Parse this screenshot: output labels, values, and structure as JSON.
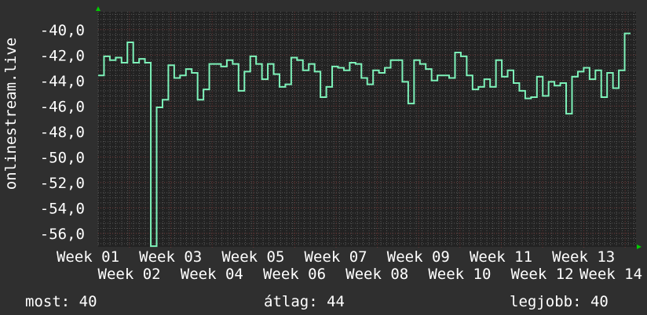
{
  "chart_data": {
    "type": "line",
    "step": true,
    "ylabel": "onlinestream.live",
    "xlabel": "",
    "ylim": [
      -57.05,
      -38.6
    ],
    "yticks": [
      -40,
      -42,
      -44,
      -46,
      -48,
      -50,
      -52,
      -54,
      -56
    ],
    "ytick_labels": [
      "-40,0",
      "-42,0",
      "-44,0",
      "-46,0",
      "-48,0",
      "-50,0",
      "-52,0",
      "-54,0",
      "-56,0"
    ],
    "xtick_labels": [
      "Week 01",
      "Week 02",
      "Week 03",
      "Week 04",
      "Week 05",
      "Week 06",
      "Week 07",
      "Week 08",
      "Week 09",
      "Week 10",
      "Week 11",
      "Week 12",
      "Week 13",
      "Week 14"
    ],
    "grid": true,
    "colors": {
      "line": "#7df2b9",
      "background": "#2f2f2f",
      "plot": "#222222",
      "grid_minor": "#555555",
      "grid_major": "#6b3535",
      "arrow": "#00cc00"
    },
    "values": [
      -43.6,
      -42.1,
      -42.4,
      -42.2,
      -42.6,
      -41.0,
      -42.6,
      -42.3,
      -42.6,
      -57.0,
      -46.1,
      -45.5,
      -42.8,
      -43.8,
      -43.6,
      -43.1,
      -43.4,
      -45.5,
      -44.7,
      -42.7,
      -42.7,
      -42.9,
      -42.4,
      -42.7,
      -44.8,
      -43.3,
      -42.1,
      -42.7,
      -43.9,
      -42.7,
      -43.5,
      -44.5,
      -44.3,
      -42.2,
      -42.4,
      -43.2,
      -42.7,
      -43.3,
      -45.3,
      -44.5,
      -42.9,
      -43.0,
      -43.2,
      -42.6,
      -42.7,
      -43.8,
      -44.3,
      -43.2,
      -43.4,
      -43.0,
      -42.4,
      -42.4,
      -44.1,
      -45.8,
      -42.4,
      -42.7,
      -43.1,
      -44.0,
      -43.6,
      -43.6,
      -43.8,
      -41.8,
      -42.1,
      -43.6,
      -44.7,
      -44.5,
      -43.9,
      -44.5,
      -42.4,
      -43.7,
      -43.2,
      -44.2,
      -44.8,
      -45.4,
      -45.3,
      -43.7,
      -45.2,
      -44.1,
      -44.4,
      -44.2,
      -46.6,
      -43.7,
      -43.3,
      -43.0,
      -43.9,
      -43.2,
      -45.3,
      -43.4,
      -44.6,
      -43.2,
      -40.3
    ]
  },
  "legend": {
    "current": "most: 40",
    "average": "átlag: 44",
    "best": "legjobb: 40"
  }
}
